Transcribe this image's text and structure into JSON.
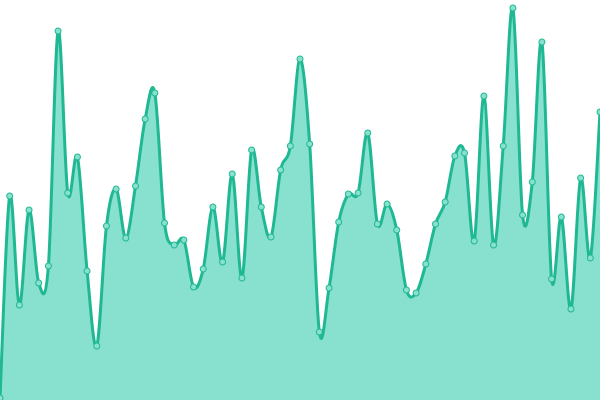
{
  "chart_data": {
    "type": "area",
    "color": "#1fb892",
    "fill": "#88e0cf",
    "values": [
      2,
      204,
      95,
      190,
      117,
      134,
      369,
      207,
      243,
      129,
      54,
      174,
      211,
      162,
      214,
      281,
      307,
      177,
      155,
      160,
      113,
      131,
      193,
      138,
      226,
      122,
      250,
      193,
      163,
      230,
      254,
      341,
      256,
      68,
      112,
      178,
      206,
      207,
      267,
      176,
      196,
      170,
      110,
      107,
      136,
      176,
      198,
      244,
      247,
      159,
      304,
      155,
      254,
      392,
      185,
      218,
      358,
      121,
      183,
      91,
      222,
      142,
      288
    ],
    "ylim": [
      0,
      400
    ]
  }
}
